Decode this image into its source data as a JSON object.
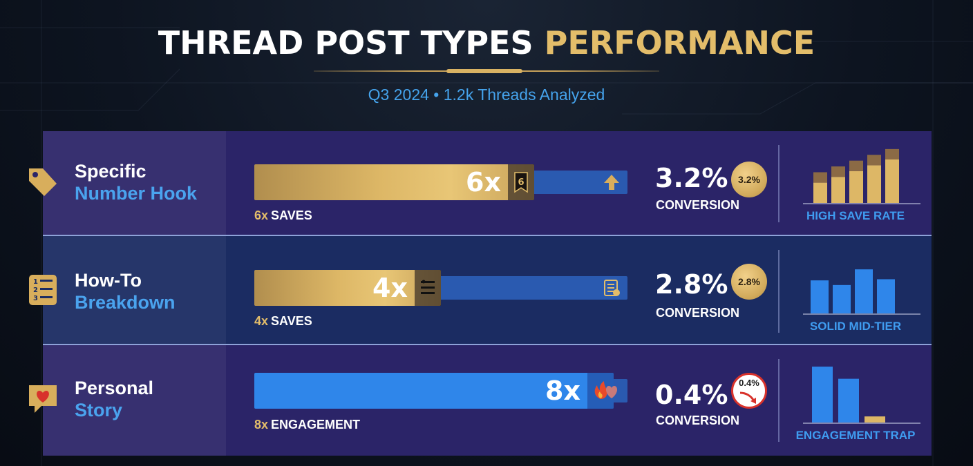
{
  "header": {
    "title_part1": "THREAD POST TYPES",
    "title_part2": "PERFORMANCE",
    "subtitle": "Q3 2024 • 1.2k Threads Analyzed"
  },
  "colors": {
    "gold": "#ddb766",
    "blue": "#2f86ea",
    "accent_blue_text": "#4aa3ee",
    "warning_red": "#d8322b"
  },
  "chart_data": {
    "type": "bar",
    "title": "THREAD POST TYPES PERFORMANCE",
    "subtitle": "Q3 2024 • 1.2k Threads Analyzed",
    "xlim": [
      0,
      8
    ],
    "categories": [
      "Specific Number Hook",
      "How-To Breakdown",
      "Personal Story"
    ],
    "rows": [
      {
        "name_line1": "Specific",
        "name_line2": "Number Hook",
        "icon": "price-tag-icon",
        "multiplier": 6,
        "multiplier_label": "6x",
        "badge_text": "6",
        "metric": "SAVES",
        "metric_mult": "6x",
        "bar_color": "gold",
        "track_icon": "arrow-up-icon",
        "conversion": 3.2,
        "conversion_label": "3.2%",
        "conversion_word": "CONVERSION",
        "coin_text": "3.2%",
        "coin_style": "gold",
        "mini_chart": {
          "type": "stacked-bar",
          "color": "gold",
          "values": [
            3.5,
            4.5,
            5.5,
            6.5,
            7.5
          ],
          "cap": [
            0.9,
            0.9,
            0.9,
            0.9,
            0.9
          ]
        },
        "tag": "HIGH SAVE RATE"
      },
      {
        "name_line1": "How-To",
        "name_line2": "Breakdown",
        "icon": "numbered-list-icon",
        "multiplier": 4,
        "multiplier_label": "4x",
        "badge_text": "",
        "metric": "SAVES",
        "metric_mult": "4x",
        "bar_color": "gold",
        "track_icon": "checklist-icon",
        "conversion": 2.8,
        "conversion_label": "2.8%",
        "conversion_word": "CONVERSION",
        "coin_text": "2.8%",
        "coin_style": "gold",
        "mini_chart": {
          "type": "bar",
          "color": "blue",
          "values": [
            5.7,
            4.9,
            7.6,
            5.9
          ]
        },
        "tag": "SOLID MID-TIER"
      },
      {
        "name_line1": "Personal",
        "name_line2": "Story",
        "icon": "heart-bubble-icon",
        "multiplier": 8,
        "multiplier_label": "8x",
        "badge_text": "",
        "metric": "ENGAGEMENT",
        "metric_mult": "8x",
        "bar_color": "blue",
        "track_icon": "heart-icon",
        "conversion": 0.4,
        "conversion_label": "0.4%",
        "conversion_word": "CONVERSION",
        "coin_text": "0.4%",
        "coin_style": "warning",
        "mini_chart": {
          "type": "bar",
          "color": "blue",
          "values": [
            9.2,
            7.2,
            1.0
          ]
        },
        "tag": "ENGAGEMENT TRAP"
      }
    ]
  }
}
